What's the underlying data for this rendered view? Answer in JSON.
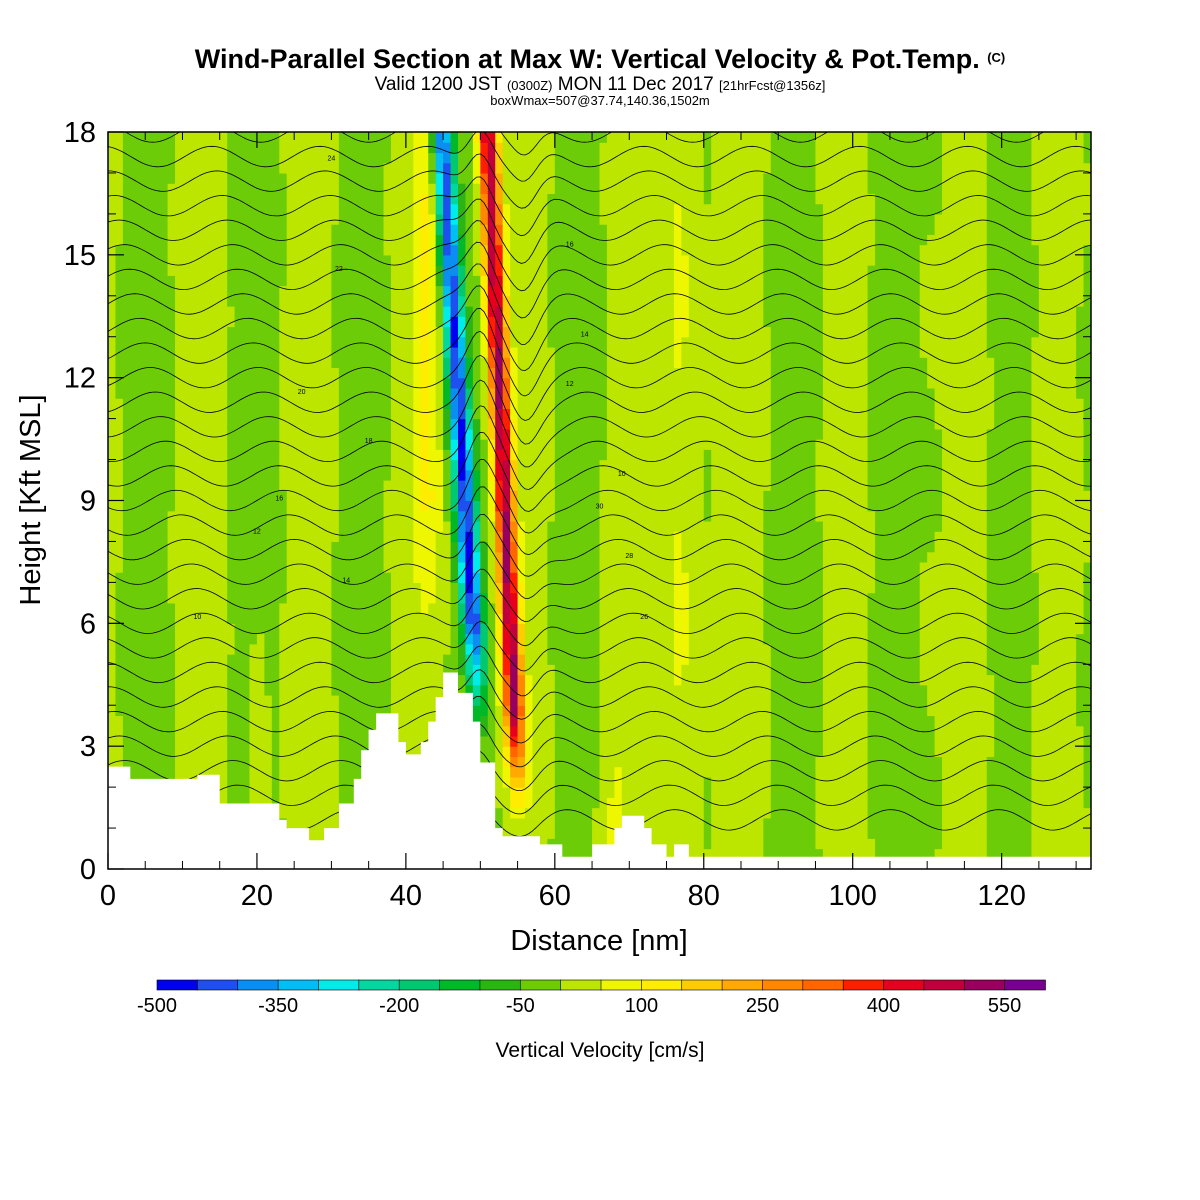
{
  "header": {
    "title": "Wind-Parallel Section at Max W: Vertical Velocity & Pot.Temp.",
    "title_mark": "(C)",
    "valid_a": "Valid 1200 JST",
    "valid_b": "(0300Z)",
    "valid_c": "MON 11 Dec 2017",
    "valid_d": "[21hrFcst@1356z]",
    "boxline": "boxWmax=507@37.74,140.36,1502m"
  },
  "chart_data": {
    "type": "heatmap",
    "xlabel": "Distance [nm]",
    "ylabel": "Height [Kft MSL]",
    "xlim": [
      0,
      132
    ],
    "ylim": [
      0,
      18
    ],
    "x_ticks": [
      0,
      20,
      40,
      60,
      80,
      100,
      120
    ],
    "y_ticks": [
      0,
      3,
      6,
      9,
      12,
      15,
      18
    ],
    "colorbar": {
      "label": "Vertical Velocity [cm/s]",
      "min": -500,
      "step": 50,
      "tick_labels": [
        "-500",
        "-350",
        "-200",
        "-50",
        "100",
        "250",
        "400",
        "550"
      ],
      "colors": [
        "#0000f0",
        "#1e50f0",
        "#0a8ef0",
        "#00bef0",
        "#00ecea",
        "#00d8a0",
        "#00c870",
        "#00b828",
        "#2cb414",
        "#6ccc08",
        "#bce600",
        "#eef700",
        "#ffec00",
        "#ffcc00",
        "#ffaa00",
        "#ff8800",
        "#ff6600",
        "#ff1e00",
        "#e6001e",
        "#c0003c",
        "#980060",
        "#780090"
      ]
    },
    "terrain": [
      [
        0,
        2.5
      ],
      [
        3,
        2.5
      ],
      [
        3,
        2.2
      ],
      [
        12,
        2.2
      ],
      [
        12,
        2.3
      ],
      [
        15,
        2.3
      ],
      [
        15,
        1.6
      ],
      [
        23,
        1.6
      ],
      [
        23,
        1.2
      ],
      [
        24,
        1.2
      ],
      [
        24,
        1.0
      ],
      [
        27,
        1.0
      ],
      [
        27,
        0.7
      ],
      [
        29,
        0.7
      ],
      [
        29,
        1.0
      ],
      [
        31,
        1.0
      ],
      [
        31,
        1.6
      ],
      [
        33,
        1.6
      ],
      [
        33,
        2.2
      ],
      [
        34,
        2.2
      ],
      [
        34,
        2.9
      ],
      [
        35,
        2.9
      ],
      [
        35,
        3.4
      ],
      [
        36,
        3.4
      ],
      [
        36,
        3.8
      ],
      [
        39,
        3.8
      ],
      [
        39,
        3.1
      ],
      [
        40,
        3.1
      ],
      [
        40,
        2.8
      ],
      [
        42,
        2.8
      ],
      [
        42,
        3.1
      ],
      [
        43,
        3.1
      ],
      [
        43,
        3.6
      ],
      [
        44,
        3.6
      ],
      [
        44,
        4.2
      ],
      [
        45,
        4.2
      ],
      [
        45,
        4.8
      ],
      [
        47,
        4.8
      ],
      [
        47,
        4.3
      ],
      [
        49,
        4.3
      ],
      [
        49,
        3.6
      ],
      [
        50,
        3.6
      ],
      [
        50,
        2.6
      ],
      [
        52,
        2.6
      ],
      [
        52,
        1.0
      ],
      [
        53,
        1.0
      ],
      [
        53,
        0.8
      ],
      [
        58,
        0.8
      ],
      [
        58,
        0.6
      ],
      [
        61,
        0.6
      ],
      [
        61,
        0.3
      ],
      [
        65,
        0.3
      ],
      [
        65,
        0.6
      ],
      [
        68,
        0.6
      ],
      [
        68,
        1.0
      ],
      [
        69,
        1.0
      ],
      [
        69,
        1.3
      ],
      [
        72,
        1.3
      ],
      [
        72,
        1.0
      ],
      [
        73,
        1.0
      ],
      [
        73,
        0.6
      ],
      [
        75,
        0.6
      ],
      [
        75,
        0.3
      ],
      [
        76,
        0.3
      ],
      [
        76,
        0.6
      ],
      [
        78,
        0.6
      ],
      [
        78,
        0.3
      ],
      [
        132,
        0.3
      ]
    ],
    "updraft_core": {
      "x": 54,
      "slope_nm_per_kft": -0.25,
      "peak": 507
    },
    "downdraft_core": {
      "x": 49,
      "slope_nm_per_kft": -0.35,
      "peak": -450
    },
    "theta_contour_labels": [
      "10",
      "12",
      "14",
      "16",
      "18",
      "20",
      "22",
      "24",
      "26",
      "28",
      "30"
    ]
  },
  "colors": {
    "plot_border": "#000000",
    "contour": "#000000"
  }
}
